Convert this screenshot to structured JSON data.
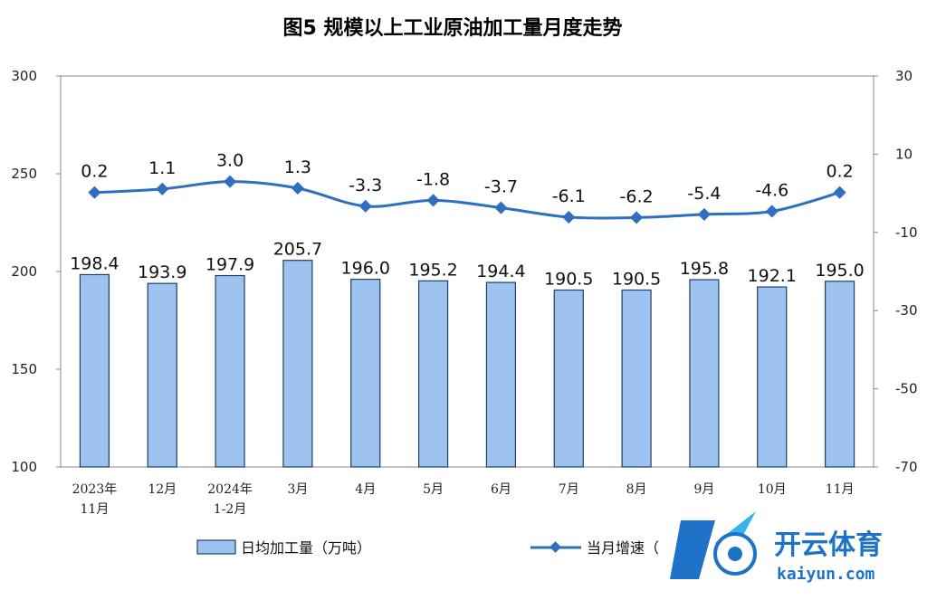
{
  "chart_data": {
    "type": "bar",
    "title": "图5  规模以上工业原油加工量月度走势",
    "categories": [
      [
        "2023年",
        "11月"
      ],
      [
        "12月"
      ],
      [
        "2024年",
        "1-2月"
      ],
      [
        "3月"
      ],
      [
        "4月"
      ],
      [
        "5月"
      ],
      [
        "6月"
      ],
      [
        "7月"
      ],
      [
        "8月"
      ],
      [
        "9月"
      ],
      [
        "10月"
      ],
      [
        "11月"
      ]
    ],
    "series": [
      {
        "name": "日均加工量（万吨）",
        "type": "bar",
        "axis": "left",
        "values": [
          198.4,
          193.9,
          197.9,
          205.7,
          196.0,
          195.2,
          194.4,
          190.5,
          190.5,
          195.8,
          192.1,
          195.0
        ],
        "labels": [
          "198.4",
          "193.9",
          "197.9",
          "205.7",
          "196.0",
          "195.2",
          "194.4",
          "190.5",
          "190.5",
          "195.8",
          "192.1",
          "195.0"
        ],
        "color": "#9dc3f0"
      },
      {
        "name": "当月增速（",
        "type": "line",
        "axis": "right",
        "values": [
          0.2,
          1.1,
          3.0,
          1.3,
          -3.3,
          -1.8,
          -3.7,
          -6.1,
          -6.2,
          -5.4,
          -4.6,
          0.2
        ],
        "labels": [
          "0.2",
          "1.1",
          "3.0",
          "1.3",
          "-3.3",
          "-1.8",
          "-3.7",
          "-6.1",
          "-6.2",
          "-5.4",
          "-4.6",
          "0.2"
        ],
        "color": "#2e6fc0"
      }
    ],
    "y_left": {
      "min": 100,
      "max": 300,
      "ticks": [
        "300",
        "250",
        "200",
        "150",
        "100"
      ]
    },
    "y_right": {
      "min": -70,
      "max": 30,
      "ticks": [
        "30",
        "10",
        "-10",
        "-30",
        "-50",
        "-70"
      ]
    },
    "grid": false,
    "legend": "bottom"
  },
  "watermark": {
    "brand": "开云体育",
    "domain": "kaiyun.com"
  }
}
